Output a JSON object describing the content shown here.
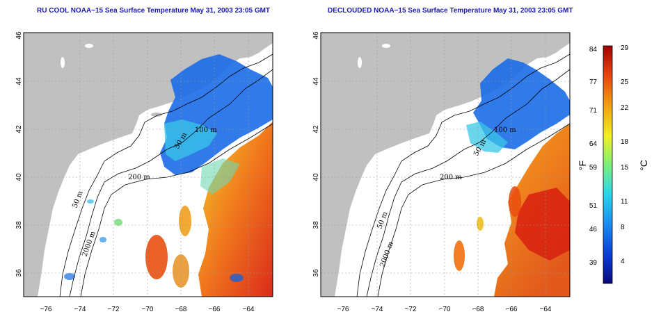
{
  "titles": {
    "left": "RU COOL NOAA−15 Sea Surface Temperature May 31, 2003 23:05 GMT",
    "right": "DECLOUDED NOAA−15 Sea Surface Temperature May 31, 2003 23:05 GMT"
  },
  "axes": {
    "lat_ticks": [
      "46",
      "44",
      "42",
      "40",
      "38",
      "36"
    ],
    "lon_ticks": [
      "−76",
      "−74",
      "−72",
      "−70",
      "−68",
      "−66",
      "−64"
    ]
  },
  "contour_labels": {
    "d50": "50 m",
    "d100": "100 m",
    "d200": "200 m",
    "d2000": "2000 m"
  },
  "colorbar": {
    "unit_f": "°F",
    "unit_c": "°C",
    "fahrenheit": [
      "84",
      "77",
      "71",
      "64",
      "59",
      "51",
      "46",
      "39"
    ],
    "celsius": [
      "29",
      "25",
      "22",
      "18",
      "15",
      "11",
      "8",
      "4"
    ],
    "colors": [
      "#08087a",
      "#0a3cd8",
      "#1a8cf0",
      "#2ad8e8",
      "#7ef07a",
      "#f0f020",
      "#f0a010",
      "#e84010",
      "#a00000"
    ]
  },
  "colors": {
    "land": "#c0c0c0",
    "title": "#1a1ab0"
  }
}
